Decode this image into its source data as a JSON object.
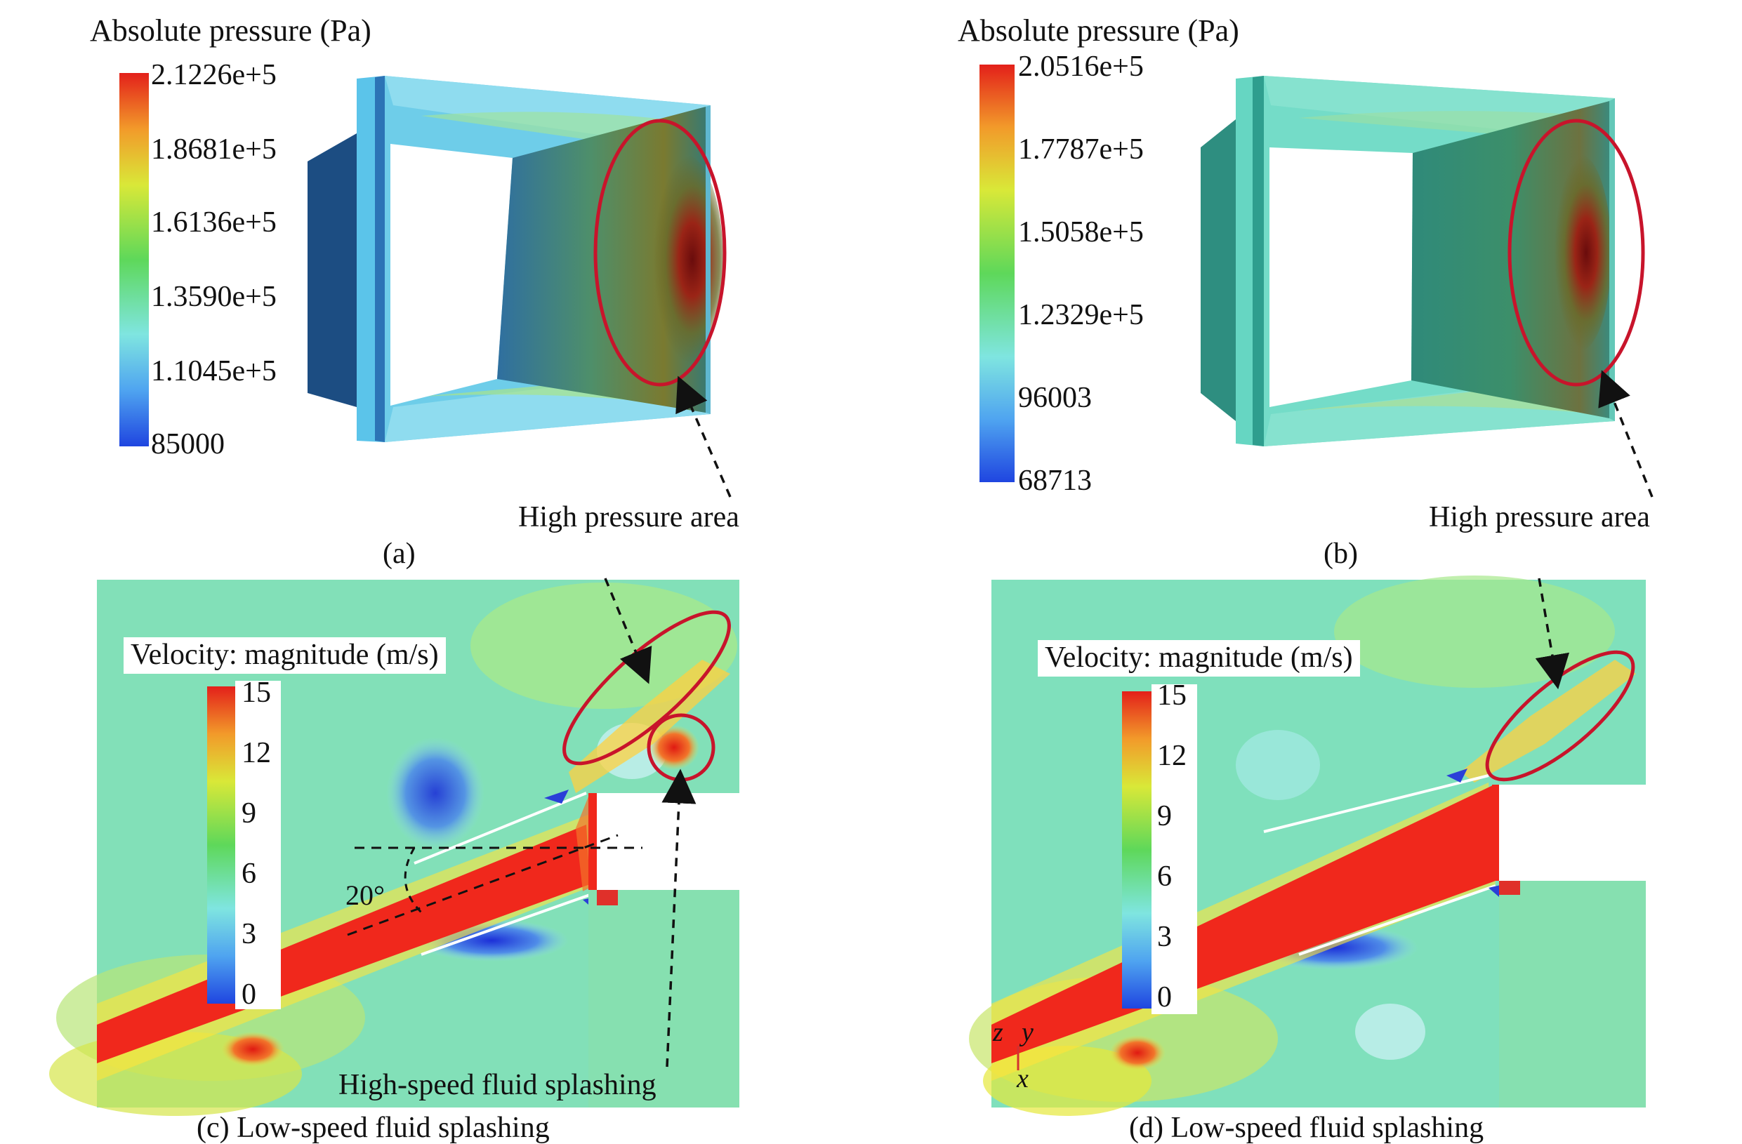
{
  "panels": {
    "a": {
      "legend_title": "Absolute pressure (Pa)",
      "ticks": [
        "2.1226e+5",
        "1.8681e+5",
        "1.6136e+5",
        "1.3590e+5",
        "1.1045e+5",
        "85000"
      ],
      "annotation": "High pressure area",
      "caption": "(a)"
    },
    "b": {
      "legend_title": "Absolute pressure (Pa)",
      "ticks": [
        "2.0516e+5",
        "1.7787e+5",
        "1.5058e+5",
        "1.2329e+5",
        "96003",
        "68713"
      ],
      "annotation": "High pressure area",
      "caption": "(b)"
    },
    "c": {
      "legend_title": "Velocity: magnitude (m/s)",
      "ticks": [
        "15",
        "12",
        "9",
        "6",
        "3",
        "0"
      ],
      "angle_label": "20°",
      "annotation": "High-speed fluid splashing",
      "caption": "(c) Low-speed fluid splashing"
    },
    "d": {
      "legend_title": "Velocity: magnitude (m/s)",
      "ticks": [
        "15",
        "12",
        "9",
        "6",
        "3",
        "0"
      ],
      "axes": {
        "z": "z",
        "y": "y",
        "x": "x"
      },
      "caption": "(d) Low-speed fluid splashing"
    }
  },
  "colors": {
    "pressure_low": "#2a5bd7",
    "pressure_mid": "#7ee0e8",
    "pressure_high": "#c61a10",
    "velocity_jet": "#f0281c",
    "velocity_background": "#7fe0b4",
    "highlight_ellipse": "#c8142b"
  }
}
